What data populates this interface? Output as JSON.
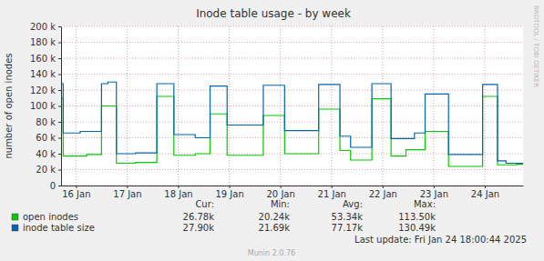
{
  "chart_data": {
    "type": "line",
    "title": "Inode table usage - by week",
    "y_label": "number of open inodes",
    "line_style": "step",
    "grid": true,
    "legend": "bottom",
    "x": [
      -7,
      -6,
      2,
      5,
      12,
      15,
      19,
      28,
      38,
      46,
      56,
      63,
      71,
      88,
      94,
      98,
      114,
      124,
      129,
      139,
      148,
      155,
      159,
      164,
      175,
      191,
      198,
      202,
      207,
      210
    ],
    "xlim": [
      -7,
      210
    ],
    "xticks": [
      {
        "value": 0,
        "label": "16 Jan"
      },
      {
        "value": 24,
        "label": "17 Jan"
      },
      {
        "value": 48,
        "label": "18 Jan"
      },
      {
        "value": 72,
        "label": "19 Jan"
      },
      {
        "value": 96,
        "label": "20 Jan"
      },
      {
        "value": 120,
        "label": "21 Jan"
      },
      {
        "value": 144,
        "label": "22 Jan"
      },
      {
        "value": 168,
        "label": "23 Jan"
      },
      {
        "value": 192,
        "label": "24 Jan"
      }
    ],
    "ylim": [
      0,
      200000
    ],
    "yticks": [
      0,
      {
        "value": 20000,
        "label": "20 k"
      },
      {
        "value": 40000,
        "label": "40 k"
      },
      {
        "value": 60000,
        "label": "60 k"
      },
      {
        "value": 80000,
        "label": "80 k"
      },
      {
        "value": 100000,
        "label": "100 k"
      },
      {
        "value": 120000,
        "label": "120 k"
      },
      {
        "value": 140000,
        "label": "140 k"
      },
      {
        "value": 160000,
        "label": "160 k"
      },
      {
        "value": 180000,
        "label": "180 k"
      },
      {
        "value": 200000,
        "label": "200 k"
      }
    ],
    "stat_columns": [
      "Cur:",
      "Min:",
      "Avg:",
      "Max:"
    ],
    "series": [
      {
        "name": "open inodes",
        "color": "#00cc00",
        "values": [
          110000,
          37000,
          37000,
          39000,
          100000,
          100000,
          28000,
          29000,
          112000,
          38000,
          40000,
          90000,
          38000,
          88000,
          88000,
          40000,
          96000,
          44000,
          32000,
          109000,
          37000,
          45000,
          45000,
          68000,
          24000,
          112000,
          26000,
          26000,
          26780,
          26780
        ],
        "stats": [
          "26.78k",
          "20.24k",
          "53.34k",
          "113.50k"
        ]
      },
      {
        "name": "inode table size",
        "color": "#0066b3",
        "values": [
          128000,
          66000,
          68000,
          68000,
          128000,
          130000,
          40000,
          41000,
          128000,
          64000,
          60000,
          125000,
          76000,
          126000,
          126000,
          69000,
          127000,
          62000,
          48000,
          128000,
          59000,
          59000,
          66000,
          115000,
          39000,
          127000,
          31000,
          28000,
          27900,
          27900
        ],
        "stats": [
          "27.90k",
          "21.69k",
          "77.17k",
          "130.49k"
        ]
      }
    ],
    "last_update": "Last update: Fri Jan 24 18:00:44 2025",
    "footer": "Munin 2.0.76",
    "watermark": "RRDTOOL / TOBI OETIKER"
  }
}
